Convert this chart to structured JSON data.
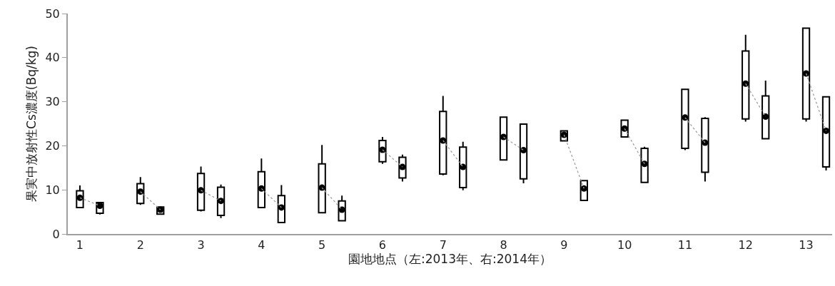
{
  "chart_data": {
    "type": "box",
    "xlabel": "園地地点（左:2013年、右:2014年）",
    "ylabel": "果実中放射性Cs濃度(Bq/kg)",
    "xlim": [
      0.8,
      13.43
    ],
    "xticks": [
      1,
      2,
      3,
      4,
      5,
      6,
      7,
      8,
      9,
      10,
      11,
      12,
      13
    ],
    "ylim": [
      0,
      50
    ],
    "yticks": [
      0,
      10,
      20,
      30,
      40,
      50
    ],
    "marker": "circle",
    "series": [
      {
        "color": "#000000",
        "x": [
          1,
          2,
          3,
          4,
          5,
          6,
          7,
          8,
          9,
          10,
          11,
          12,
          13
        ],
        "boxes": [
          {
            "low": 6.0,
            "q1": 6.0,
            "median": 8.2,
            "q3": 9.8,
            "high": 11.0
          },
          {
            "low": 6.6,
            "q1": 6.9,
            "median": 9.6,
            "q3": 11.4,
            "high": 12.9
          },
          {
            "low": 5.1,
            "q1": 5.4,
            "median": 9.9,
            "q3": 13.7,
            "high": 15.3
          },
          {
            "low": 6.0,
            "q1": 6.0,
            "median": 10.3,
            "q3": 14.1,
            "high": 17.1
          },
          {
            "low": 4.8,
            "q1": 4.8,
            "median": 10.5,
            "q3": 15.9,
            "high": 20.2
          },
          {
            "low": 15.9,
            "q1": 16.4,
            "median": 19.1,
            "q3": 21.2,
            "high": 22.0
          },
          {
            "low": 13.3,
            "q1": 13.6,
            "median": 21.2,
            "q3": 27.8,
            "high": 31.3
          },
          {
            "low": 16.8,
            "q1": 16.8,
            "median": 22.0,
            "q3": 26.5,
            "high": 26.5
          },
          {
            "low": 21.1,
            "q1": 21.1,
            "median": 22.5,
            "q3": 23.4,
            "high": 23.4
          },
          {
            "low": 22.0,
            "q1": 22.0,
            "median": 23.9,
            "q3": 25.8,
            "high": 25.8
          },
          {
            "low": 19.0,
            "q1": 19.4,
            "median": 26.4,
            "q3": 32.8,
            "high": 32.8
          },
          {
            "low": 25.5,
            "q1": 26.1,
            "median": 34.1,
            "q3": 41.5,
            "high": 45.2
          },
          {
            "low": 25.5,
            "q1": 26.1,
            "median": 36.4,
            "q3": 46.7,
            "high": 46.7
          }
        ]
      },
      {
        "color": "#000000",
        "x": [
          1.33,
          2.33,
          3.33,
          4.33,
          5.33,
          6.33,
          7.33,
          8.33,
          9.33,
          10.33,
          11.33,
          12.33,
          13.33
        ],
        "boxes": [
          {
            "low": 4.4,
            "q1": 4.7,
            "median": 6.4,
            "q3": 7.1,
            "high": 7.1
          },
          {
            "low": 4.5,
            "q1": 4.5,
            "median": 5.5,
            "q3": 6.1,
            "high": 6.1
          },
          {
            "low": 3.6,
            "q1": 4.2,
            "median": 7.5,
            "q3": 10.6,
            "high": 11.2
          },
          {
            "low": 2.6,
            "q1": 2.6,
            "median": 6.0,
            "q3": 8.7,
            "high": 11.1
          },
          {
            "low": 3.0,
            "q1": 3.0,
            "median": 5.5,
            "q3": 7.5,
            "high": 8.7
          },
          {
            "low": 11.9,
            "q1": 12.7,
            "median": 15.2,
            "q3": 17.4,
            "high": 18.0
          },
          {
            "low": 9.9,
            "q1": 10.5,
            "median": 15.2,
            "q3": 19.7,
            "high": 20.9
          },
          {
            "low": 11.5,
            "q1": 12.5,
            "median": 19.0,
            "q3": 24.9,
            "high": 24.9
          },
          {
            "low": 7.6,
            "q1": 7.6,
            "median": 10.3,
            "q3": 12.1,
            "high": 12.1
          },
          {
            "low": 11.7,
            "q1": 11.7,
            "median": 15.9,
            "q3": 19.4,
            "high": 19.8
          },
          {
            "low": 11.9,
            "q1": 14.0,
            "median": 20.7,
            "q3": 26.2,
            "high": 26.5
          },
          {
            "low": 21.6,
            "q1": 21.6,
            "median": 26.6,
            "q3": 31.3,
            "high": 34.8
          },
          {
            "low": 14.4,
            "q1": 15.2,
            "median": 23.4,
            "q3": 31.1,
            "high": 31.1
          }
        ]
      },
      {
        "type": "line",
        "color": "#a0a0a0",
        "line_style": "dotted",
        "marker": "none",
        "x": [
          1,
          1.33,
          1.5,
          2,
          2.33,
          2.5,
          3,
          3.33,
          3.5,
          4,
          4.33,
          4.5,
          5,
          5.33,
          5.5,
          6,
          6.33,
          6.5,
          7,
          7.33,
          7.5,
          8,
          8.33,
          8.5,
          9,
          9.33,
          9.5,
          10,
          10.33,
          10.5,
          11,
          11.33,
          11.5,
          12,
          12.33,
          12.5,
          13,
          13.33
        ],
        "values": [
          8.2,
          6.4,
          null,
          9.6,
          5.5,
          null,
          9.9,
          7.5,
          null,
          10.3,
          6.0,
          null,
          10.5,
          5.5,
          null,
          19.1,
          15.2,
          null,
          21.2,
          15.2,
          null,
          22.0,
          19.0,
          null,
          22.5,
          10.3,
          null,
          23.9,
          15.9,
          null,
          26.4,
          20.7,
          null,
          34.1,
          26.6,
          null,
          36.4,
          23.4
        ]
      }
    ]
  }
}
